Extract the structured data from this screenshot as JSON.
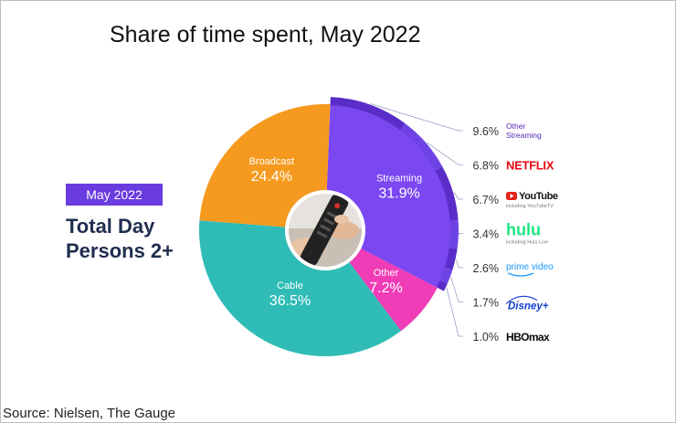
{
  "title": "Share of time spent, May 2022",
  "badge": "May 2022",
  "headline": [
    "Total Day",
    "Persons 2+"
  ],
  "source": "Source: Nielsen, The Gauge",
  "chart_data": {
    "type": "pie",
    "variant": "donut",
    "slices": [
      {
        "label": "Streaming",
        "value": 31.9,
        "display": "31.9%",
        "color": "#7b47f0"
      },
      {
        "label": "Other",
        "value": 7.2,
        "display": "7.2%",
        "color": "#f03cb6"
      },
      {
        "label": "Cable",
        "value": 36.5,
        "display": "36.5%",
        "color": "#2fbcb6"
      },
      {
        "label": "Broadcast",
        "value": 24.4,
        "display": "24.4%",
        "color": "#f59a1e"
      }
    ],
    "streaming_breakdown": [
      {
        "label": "Other Streaming",
        "value": 9.6,
        "display": "9.6%",
        "logo": "Other Streaming",
        "sub": "",
        "color": "#5525b8",
        "icon": "text-logo"
      },
      {
        "label": "Netflix",
        "value": 6.8,
        "display": "6.8%",
        "logo": "NETFLIX",
        "sub": "",
        "color": "#e50914",
        "icon": "netflix-logo"
      },
      {
        "label": "YouTube",
        "value": 6.7,
        "display": "6.7%",
        "logo": "YouTube",
        "sub": "including YouTubeTV",
        "color": "#e62117",
        "icon": "youtube-logo"
      },
      {
        "label": "Hulu",
        "value": 3.4,
        "display": "3.4%",
        "logo": "hulu",
        "sub": "including Hulu Live",
        "color": "#1ce783",
        "icon": "hulu-logo"
      },
      {
        "label": "Prime Video",
        "value": 2.6,
        "display": "2.6%",
        "logo": "prime video",
        "sub": "",
        "color": "#1a98ff",
        "icon": "prime-video-logo"
      },
      {
        "label": "Disney+",
        "value": 1.7,
        "display": "1.7%",
        "logo": "Disney+",
        "sub": "",
        "color": "#113ccf",
        "icon": "disney-plus-logo"
      },
      {
        "label": "HBO Max",
        "value": 1.0,
        "display": "1.0%",
        "logo": "HBOmax",
        "sub": "",
        "color": "#0a0a0a",
        "icon": "hbo-max-logo"
      }
    ],
    "center_image": "tv-remote-photo"
  }
}
